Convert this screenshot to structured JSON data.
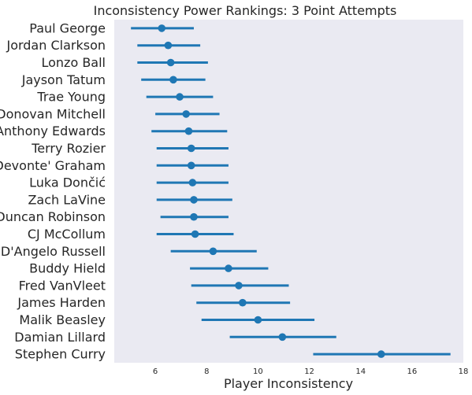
{
  "chart_data": {
    "type": "point-range",
    "title": "Inconsistency Power Rankings: 3 Point Attempts",
    "xlabel": "Player Inconsistency",
    "ylabel": "",
    "xlim": [
      4.4,
      18
    ],
    "xticks": [
      6,
      8,
      10,
      12,
      14,
      16,
      18
    ],
    "grid": false,
    "background": "#eaeaf2",
    "series_color": "#1f77b4",
    "players": [
      {
        "name": "Paul George",
        "value": 6.25,
        "low": 5.05,
        "high": 7.5
      },
      {
        "name": "Jordan Clarkson",
        "value": 6.5,
        "low": 5.3,
        "high": 7.75
      },
      {
        "name": "Lonzo Ball",
        "value": 6.6,
        "low": 5.3,
        "high": 8.05
      },
      {
        "name": "Jayson Tatum",
        "value": 6.7,
        "low": 5.45,
        "high": 7.95
      },
      {
        "name": "Trae Young",
        "value": 6.95,
        "low": 5.65,
        "high": 8.25
      },
      {
        "name": "Donovan Mitchell",
        "value": 7.2,
        "low": 6.0,
        "high": 8.5
      },
      {
        "name": "Anthony Edwards",
        "value": 7.3,
        "low": 5.85,
        "high": 8.8
      },
      {
        "name": "Terry Rozier",
        "value": 7.4,
        "low": 6.05,
        "high": 8.85
      },
      {
        "name": "Devonte' Graham",
        "value": 7.4,
        "low": 6.05,
        "high": 8.85
      },
      {
        "name": "Luka Dončić",
        "value": 7.45,
        "low": 6.05,
        "high": 8.85
      },
      {
        "name": "Zach LaVine",
        "value": 7.5,
        "low": 6.05,
        "high": 9.0
      },
      {
        "name": "Duncan Robinson",
        "value": 7.5,
        "low": 6.2,
        "high": 8.85
      },
      {
        "name": "CJ McCollum",
        "value": 7.55,
        "low": 6.05,
        "high": 9.05
      },
      {
        "name": "D'Angelo Russell",
        "value": 8.25,
        "low": 6.6,
        "high": 9.95
      },
      {
        "name": "Buddy Hield",
        "value": 8.85,
        "low": 7.35,
        "high": 10.4
      },
      {
        "name": "Fred VanVleet",
        "value": 9.25,
        "low": 7.4,
        "high": 11.2
      },
      {
        "name": "James Harden",
        "value": 9.4,
        "low": 7.6,
        "high": 11.25
      },
      {
        "name": "Malik Beasley",
        "value": 10.0,
        "low": 7.8,
        "high": 12.2
      },
      {
        "name": "Damian Lillard",
        "value": 10.95,
        "low": 8.9,
        "high": 13.05
      },
      {
        "name": "Stephen Curry",
        "value": 14.8,
        "low": 12.15,
        "high": 17.5
      }
    ]
  }
}
